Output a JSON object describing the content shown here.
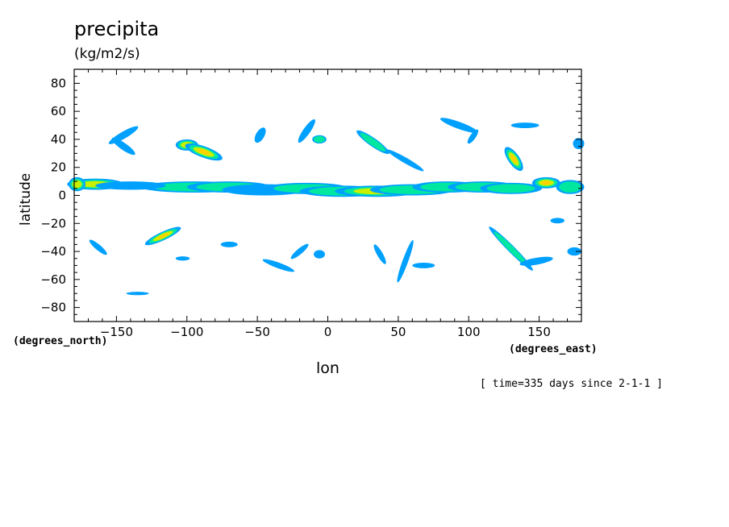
{
  "chart_data": {
    "type": "heatmap",
    "title": "precipita",
    "units": "(kg/m2/s)",
    "xlabel": "lon",
    "ylabel": "latitude",
    "x_units": "(degrees_east)",
    "y_units": "(degrees_north)",
    "annotation": "[ time=335 days since 2-1-1 ]",
    "xlim": [
      -180,
      180
    ],
    "ylim": [
      -90,
      90
    ],
    "xticks": [
      -150,
      -100,
      -50,
      0,
      50,
      100,
      150
    ],
    "yticks": [
      -80,
      -60,
      -40,
      -20,
      0,
      20,
      40,
      60,
      80
    ],
    "colors": {
      "level1": "#00a0ff",
      "level2": "#00e8a0",
      "level3": "#c8f000",
      "level4": "#ffd000",
      "level5": "#e02000"
    }
  }
}
